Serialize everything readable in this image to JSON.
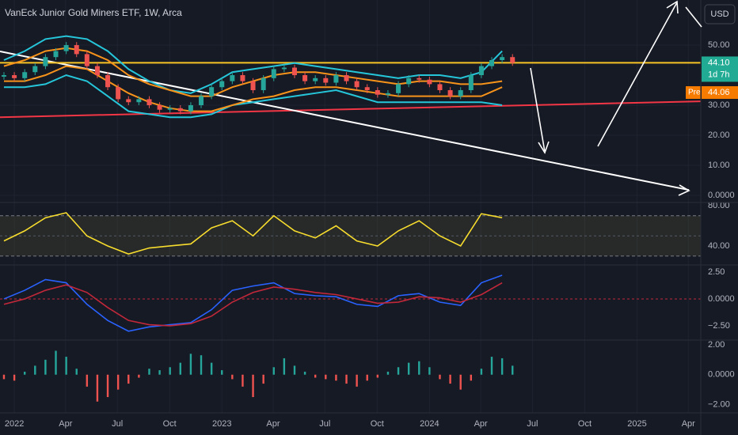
{
  "chart_data": [
    {
      "type": "candlestick",
      "title": "VanEck Junior Gold Miners ETF, 1W, Arca",
      "currency_button": "USD",
      "x": [
        2021.95,
        2022.0,
        2022.05,
        2022.1,
        2022.15,
        2022.2,
        2022.25,
        2022.3,
        2022.35,
        2022.4,
        2022.45,
        2022.5,
        2022.55,
        2022.6,
        2022.65,
        2022.7,
        2022.75,
        2022.8,
        2022.85,
        2022.9,
        2022.95,
        2023.0,
        2023.05,
        2023.1,
        2023.15,
        2023.2,
        2023.25,
        2023.3,
        2023.35,
        2023.4,
        2023.45,
        2023.5,
        2023.55,
        2023.6,
        2023.65,
        2023.7,
        2023.75,
        2023.8,
        2023.85,
        2023.9,
        2023.95,
        2024.0,
        2024.05,
        2024.1,
        2024.15,
        2024.2,
        2024.25,
        2024.3,
        2024.35,
        2024.4
      ],
      "open": [
        39.5,
        40,
        39,
        41,
        43,
        46,
        48,
        50,
        47,
        43,
        40,
        36,
        32,
        31,
        32,
        30,
        28.5,
        29,
        28,
        30,
        33,
        36,
        38,
        40,
        38,
        35,
        39,
        42,
        42.5,
        40,
        38,
        39,
        37.5,
        40,
        38,
        36,
        35,
        33.5,
        34,
        37,
        39,
        38.5,
        37,
        35,
        33,
        35,
        40,
        43,
        45,
        46
      ],
      "high": [
        41,
        41,
        42,
        44,
        47,
        49,
        51,
        51,
        48,
        44,
        41,
        37,
        33,
        33,
        33,
        31,
        30,
        30,
        31,
        34,
        37,
        39,
        41,
        41,
        39,
        40,
        43,
        43.5,
        43.5,
        41,
        40,
        40,
        41,
        41,
        39,
        37,
        36,
        35,
        38,
        40,
        40,
        39.5,
        38,
        36,
        36,
        41,
        44,
        46,
        47,
        47
      ],
      "low": [
        38.5,
        38,
        38,
        40,
        42,
        45,
        47,
        46,
        42,
        39,
        35,
        31,
        30,
        30,
        29,
        27.5,
        27.5,
        27,
        27,
        29,
        32,
        35,
        37,
        37,
        34,
        34,
        38,
        41,
        39,
        37,
        37,
        36.5,
        36.5,
        37,
        35,
        34,
        32.5,
        32.5,
        33,
        36,
        37.5,
        36,
        34,
        32,
        32,
        34,
        39,
        42,
        44,
        43.1
      ],
      "close": [
        40,
        39,
        41,
        43,
        46,
        48,
        50,
        47,
        43,
        40,
        36,
        32,
        31,
        32,
        30,
        28.5,
        29,
        28,
        30,
        33,
        36,
        38,
        40,
        38,
        35,
        39,
        42,
        42.5,
        40,
        38,
        39,
        37.5,
        40,
        38,
        36,
        35,
        33.5,
        34,
        37,
        39,
        38.5,
        37,
        35,
        33,
        35,
        40,
        43,
        45,
        46,
        44.1
      ],
      "up_color": "#26a69a",
      "down_color": "#ef5350",
      "overlay_x": [
        2021.95,
        2022.05,
        2022.15,
        2022.25,
        2022.35,
        2022.45,
        2022.55,
        2022.65,
        2022.75,
        2022.85,
        2022.95,
        2023.05,
        2023.15,
        2023.25,
        2023.35,
        2023.45,
        2023.55,
        2023.65,
        2023.75,
        2023.85,
        2023.95,
        2024.05,
        2024.15,
        2024.25,
        2024.35
      ],
      "overlays": [
        {
          "color": "#26c6da",
          "values": [
            45,
            48,
            52,
            53,
            52,
            48,
            42,
            38,
            35,
            34,
            37,
            41,
            42,
            43,
            44,
            43,
            42,
            41,
            40,
            39,
            40,
            40,
            39,
            41,
            48
          ]
        },
        {
          "color": "#26c6da",
          "values": [
            36,
            36,
            37,
            40,
            38,
            33,
            28,
            27,
            26,
            26,
            27,
            30,
            31,
            32,
            33,
            34,
            35,
            33,
            31,
            31,
            31,
            31,
            31,
            31,
            30
          ]
        },
        {
          "color": "#f7931a",
          "values": [
            43,
            45,
            48,
            49,
            48,
            45,
            40,
            37,
            35,
            33,
            33,
            36,
            38,
            40,
            41,
            41,
            40,
            39,
            38,
            37,
            38,
            38,
            37,
            37,
            38
          ]
        },
        {
          "color": "#f7931a",
          "values": [
            38,
            38,
            40,
            43,
            42,
            38,
            34,
            31,
            29,
            28,
            28,
            30,
            32,
            33,
            35,
            36,
            36,
            35,
            34,
            33,
            33,
            33,
            33,
            33,
            36
          ]
        }
      ],
      "hlines": [
        {
          "value": 44.1,
          "color": "#f7c325"
        }
      ],
      "trendlines": [
        {
          "x": [
            2021.931,
            2025.307
          ],
          "values": [
            26,
            31.3
          ],
          "color": "#f23645"
        },
        {
          "x": [
            2021.931,
            2025.25
          ],
          "values": [
            47.9,
            1.8
          ],
          "color": "#ffffff"
        }
      ],
      "last_price": {
        "value": 44.1,
        "label": "44.10"
      },
      "countdown": "1d 7h",
      "premarket": {
        "tag": "Pre",
        "value": 44.06,
        "label": "44.06"
      },
      "ylim": [
        -2.1,
        65
      ],
      "yticks": [
        {
          "value": 50,
          "label": "50.00"
        },
        {
          "value": 30,
          "label": "30.00"
        },
        {
          "value": 20,
          "label": "20.00"
        },
        {
          "value": 10,
          "label": "10.00"
        },
        {
          "value": 0,
          "label": "0.0000"
        }
      ],
      "grid": true
    },
    {
      "type": "line",
      "x": [
        2021.95,
        2022.05,
        2022.15,
        2022.25,
        2022.35,
        2022.45,
        2022.55,
        2022.65,
        2022.75,
        2022.85,
        2022.95,
        2023.05,
        2023.15,
        2023.25,
        2023.35,
        2023.45,
        2023.55,
        2023.65,
        2023.75,
        2023.85,
        2023.95,
        2024.05,
        2024.15,
        2024.25,
        2024.35
      ],
      "series": [
        {
          "color": "#f7dc2e",
          "values": [
            45,
            55,
            68,
            73,
            50,
            40,
            32,
            38,
            40,
            42,
            58,
            65,
            50,
            70,
            55,
            48,
            60,
            45,
            40,
            55,
            65,
            50,
            40,
            72,
            68
          ]
        }
      ],
      "band": [
        30,
        70
      ],
      "midline": 50,
      "ylim": [
        22.7,
        82.4
      ],
      "yticks": [
        {
          "value": 80,
          "label": "80.00"
        },
        {
          "value": 40,
          "label": "40.00"
        }
      ]
    },
    {
      "type": "line",
      "x": [
        2021.95,
        2022.05,
        2022.15,
        2022.25,
        2022.35,
        2022.45,
        2022.55,
        2022.65,
        2022.75,
        2022.85,
        2022.95,
        2023.05,
        2023.15,
        2023.25,
        2023.35,
        2023.45,
        2023.55,
        2023.65,
        2023.75,
        2023.85,
        2023.95,
        2024.05,
        2024.15,
        2024.25,
        2024.35
      ],
      "series": [
        {
          "color": "#2962ff",
          "values": [
            0,
            0.8,
            1.8,
            1.5,
            -0.5,
            -2.0,
            -3.0,
            -2.6,
            -2.4,
            -2.2,
            -1.0,
            0.8,
            1.2,
            1.5,
            0.5,
            0.3,
            0.2,
            -0.5,
            -0.7,
            0.3,
            0.5,
            -0.3,
            -0.6,
            1.5,
            2.2
          ]
        },
        {
          "color": "#c2283a",
          "values": [
            -0.5,
            0,
            0.8,
            1.3,
            0.6,
            -0.8,
            -2.0,
            -2.4,
            -2.5,
            -2.3,
            -1.6,
            -0.3,
            0.6,
            1.1,
            0.9,
            0.6,
            0.4,
            0,
            -0.4,
            -0.3,
            0.2,
            0.1,
            -0.3,
            0.4,
            1.5
          ]
        }
      ],
      "midline": 0,
      "ylim": [
        -3.68,
        3.01
      ],
      "yticks": [
        {
          "value": 2.5,
          "label": "2.50"
        },
        {
          "value": 0,
          "label": "0.0000"
        },
        {
          "value": -2.5,
          "label": "−2.50"
        }
      ]
    },
    {
      "type": "bar",
      "x": [
        2021.95,
        2022.0,
        2022.05,
        2022.1,
        2022.15,
        2022.2,
        2022.25,
        2022.3,
        2022.35,
        2022.4,
        2022.45,
        2022.5,
        2022.55,
        2022.6,
        2022.65,
        2022.7,
        2022.75,
        2022.8,
        2022.85,
        2022.9,
        2022.95,
        2023.0,
        2023.05,
        2023.1,
        2023.15,
        2023.2,
        2023.25,
        2023.3,
        2023.35,
        2023.4,
        2023.45,
        2023.5,
        2023.55,
        2023.6,
        2023.65,
        2023.7,
        2023.75,
        2023.8,
        2023.85,
        2023.9,
        2023.95,
        2024.0,
        2024.05,
        2024.1,
        2024.15,
        2024.2,
        2024.25,
        2024.3,
        2024.35,
        2024.4
      ],
      "values": [
        -0.3,
        -0.4,
        0.2,
        0.6,
        1.0,
        1.6,
        1.2,
        0.4,
        -0.8,
        -1.8,
        -1.5,
        -1.0,
        -0.6,
        -0.2,
        0.4,
        0.3,
        0.5,
        0.8,
        1.4,
        1.3,
        0.8,
        0.3,
        -0.3,
        -0.8,
        -1.5,
        -0.6,
        0.5,
        1.1,
        0.6,
        0.2,
        -0.2,
        -0.3,
        -0.4,
        -0.6,
        -0.8,
        -0.4,
        -0.2,
        0.2,
        0.5,
        0.8,
        0.9,
        0.5,
        -0.3,
        -0.6,
        -1.0,
        -0.4,
        0.4,
        1.2,
        1.1,
        0.6
      ],
      "up_color": "#26a69a",
      "down_color": "#ef5350",
      "ylim": [
        -2.45,
        2.21
      ],
      "yticks": [
        {
          "value": 2,
          "label": "2.00"
        },
        {
          "value": 0,
          "label": "0.0000"
        },
        {
          "value": -2,
          "label": "−2.00"
        }
      ],
      "xlim": [
        2021.931,
        2025.307
      ],
      "xticks": [
        {
          "value": 2022.0,
          "label": "2022"
        },
        {
          "value": 2022.247,
          "label": "Apr"
        },
        {
          "value": 2022.496,
          "label": "Jul"
        },
        {
          "value": 2022.748,
          "label": "Oct"
        },
        {
          "value": 2023.0,
          "label": "2023"
        },
        {
          "value": 2023.247,
          "label": "Apr"
        },
        {
          "value": 2023.496,
          "label": "Jul"
        },
        {
          "value": 2023.748,
          "label": "Oct"
        },
        {
          "value": 2024.0,
          "label": "2024"
        },
        {
          "value": 2024.247,
          "label": "Apr"
        },
        {
          "value": 2024.496,
          "label": "Jul"
        },
        {
          "value": 2024.748,
          "label": "Oct"
        },
        {
          "value": 2025.0,
          "label": "2025"
        },
        {
          "value": 2025.247,
          "label": "Apr"
        }
      ]
    }
  ]
}
